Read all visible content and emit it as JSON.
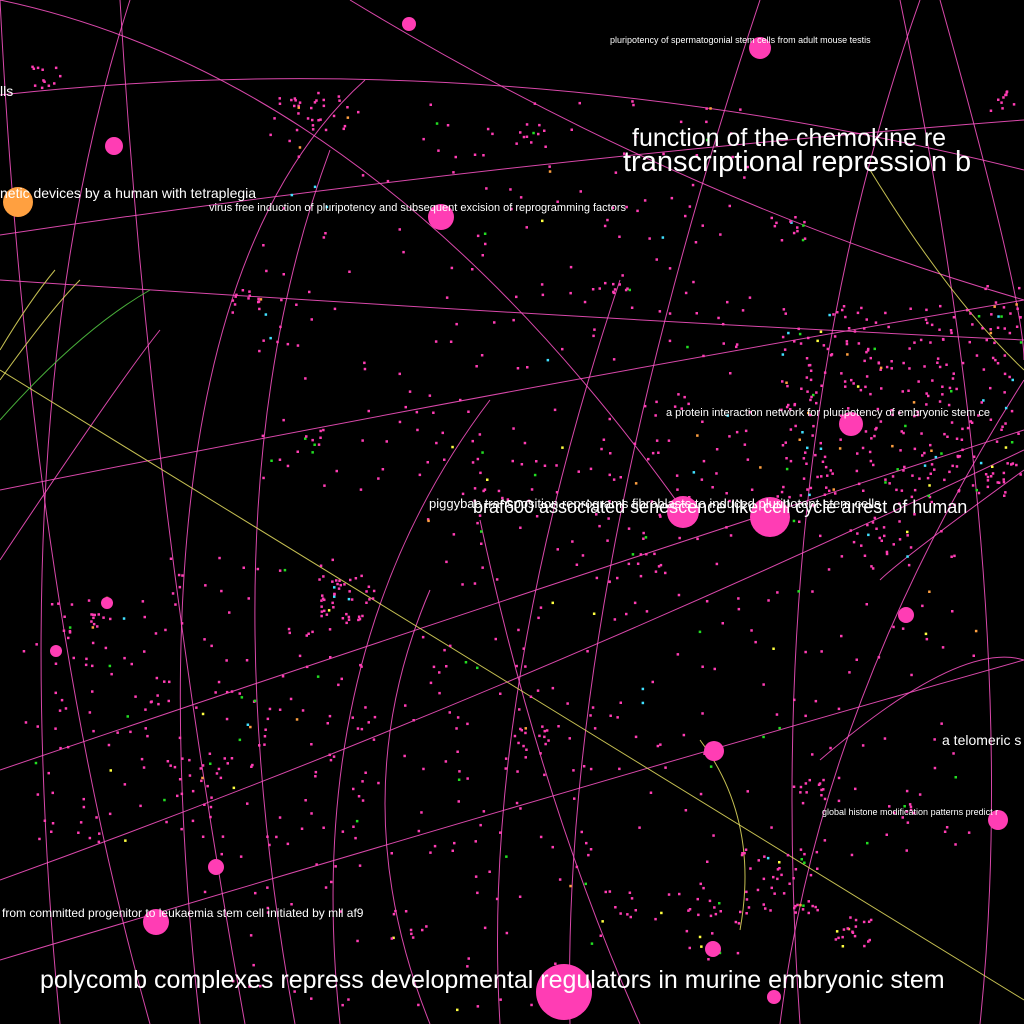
{
  "colors": {
    "background": "#000000",
    "node_primary": "#ff3db4",
    "node_orange": "#ffa040",
    "node_green": "#22dd22",
    "node_yellow": "#ffff40",
    "node_cyan": "#40e0ff",
    "edge_pink": "#ff55c8",
    "edge_yellow": "#e8e060",
    "edge_green": "#55cc44",
    "label": "#ffffff"
  },
  "labels": {
    "l1": "pluripotency of spermatogonial stem cells from adult mouse testis",
    "l2": "lls",
    "l3": "function of the chemokine re",
    "l4": "transcriptional repression b",
    "l5": "netic devices by a human with tetraplegia",
    "l6": "virus free induction of pluripotency and subsequent excision of reprogramming factors",
    "l7": "a protein interaction network for pluripotency of embryonic stem ce",
    "l8": "piggybac transposition reprograms fibroblasts to induced pluripotent stem cells",
    "l9": "braf600 associated senescence like cell cycle arrest of human",
    "l10": "a telomeric s",
    "l11": "global histone modification patterns predict r",
    "l12": "from committed progenitor to leukaemia stem cell initiated by mll af9",
    "l13": "polycomb complexes repress developmental regulators in murine embryonic stem"
  }
}
